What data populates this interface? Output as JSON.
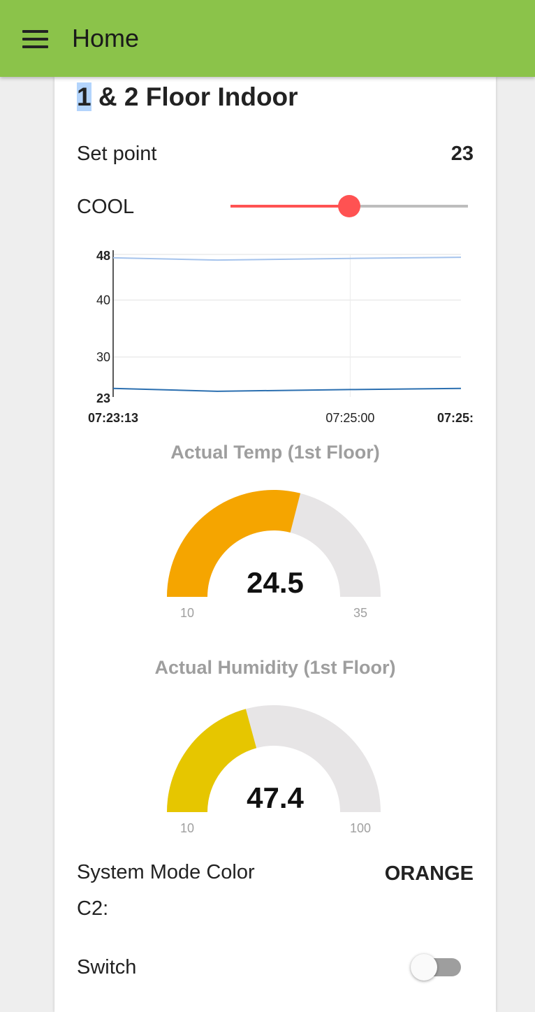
{
  "header": {
    "title": "Home",
    "menu_icon": "hamburger-menu-icon",
    "color": "#8bc34a"
  },
  "card": {
    "title_highlight": "1",
    "title_rest": " & 2 Floor Indoor"
  },
  "setpoint": {
    "label": "Set point",
    "value": "23"
  },
  "mode_slider": {
    "label": "COOL",
    "fraction": 0.5,
    "active_color": "#ff5252"
  },
  "chart_data": {
    "type": "line",
    "title": "",
    "xlabel": "",
    "ylabel": "",
    "ylim": [
      23,
      48
    ],
    "y_ticks": [
      "23",
      "30",
      "40",
      "48"
    ],
    "x_ticks": [
      "07:23:13",
      "07:25:00",
      "07:25:"
    ],
    "grid": true,
    "series": [
      {
        "color": "#a5c3ec",
        "x": [
          "07:23:13",
          "07:24:00",
          "07:25:00",
          "07:25:50"
        ],
        "values": [
          47.4,
          47.0,
          47.3,
          47.5
        ]
      },
      {
        "color": "#2b6fb0",
        "x": [
          "07:23:13",
          "07:24:00",
          "07:25:00",
          "07:25:50"
        ],
        "values": [
          24.5,
          24.0,
          24.3,
          24.5
        ]
      }
    ]
  },
  "gauges": [
    {
      "title": "Actual Temp (1st Floor)",
      "value": "24.5",
      "min": "10",
      "max": "35",
      "fraction": 0.58,
      "color": "#f5a500"
    },
    {
      "title": "Actual Humidity (1st Floor)",
      "value": "47.4",
      "min": "10",
      "max": "100",
      "fraction": 0.4156,
      "color": "#e6c600"
    }
  ],
  "system_mode": {
    "label_line1": "System Mode Color",
    "label_line2": "C2:",
    "value": "ORANGE"
  },
  "switch": {
    "label": "Switch",
    "on": false
  }
}
